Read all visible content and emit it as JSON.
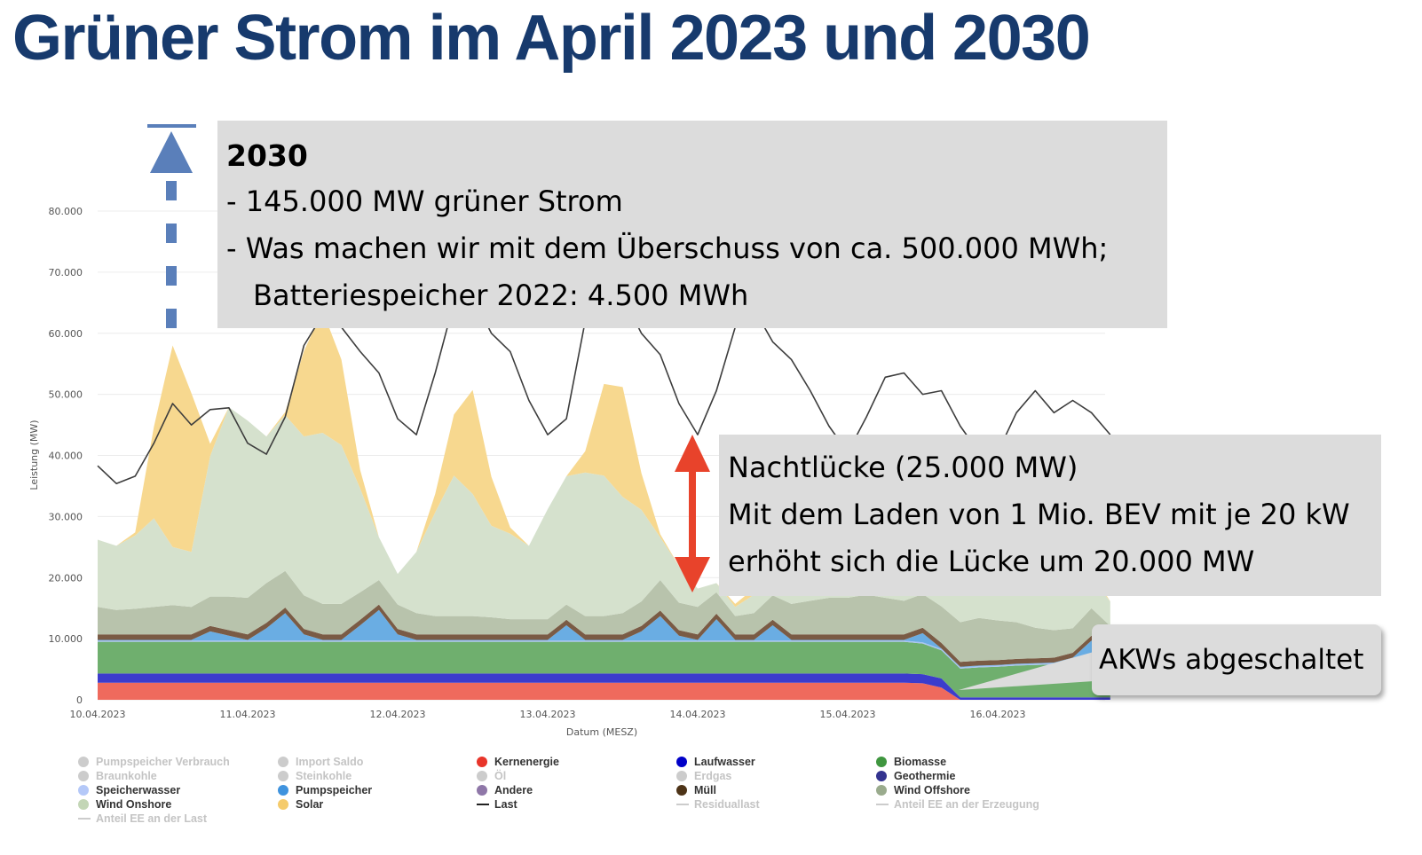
{
  "title": "Grüner Strom im April 2023 und 2030",
  "annotations": {
    "box_2030": {
      "heading": "2030",
      "line1": "- 145.000 MW grüner Strom",
      "line2": "-  Was machen wir mit dem Überschuss von ca. 500.000 MWh;",
      "line3": "Batteriespeicher 2022: 4.500 MWh"
    },
    "box_gap": {
      "line1": "Nachtlücke (25.000 MW)",
      "line2": "Mit dem Laden von 1 Mio. BEV mit je 20 kW",
      "line3": "erhöht sich die Lücke um 20.000 MW"
    },
    "box_akw": "AKWs abgeschaltet",
    "colors": {
      "arrow_up": "#5a7fba",
      "arrow_gap": "#e8432b",
      "box": "#dcdcdc"
    }
  },
  "chart_data": {
    "type": "area",
    "stacked": true,
    "xlabel": "Datum (MESZ)",
    "ylabel": "Leistung (MW)",
    "ylim": [
      0,
      80000
    ],
    "grid": true,
    "legend_placement": "bottom",
    "y_ticks": [
      "0",
      "10.000",
      "20.000",
      "30.000",
      "40.000",
      "50.000",
      "60.000",
      "70.000",
      "80.000"
    ],
    "x_ticks": [
      "10.04.2023",
      "11.04.2023",
      "12.04.2023",
      "13.04.2023",
      "14.04.2023",
      "15.04.2023",
      "16.04.2023"
    ],
    "x": [
      "2023-04-10 00:00",
      "2023-04-10 03:00",
      "2023-04-10 06:00",
      "2023-04-10 09:00",
      "2023-04-10 12:00",
      "2023-04-10 15:00",
      "2023-04-10 18:00",
      "2023-04-10 21:00",
      "2023-04-11 00:00",
      "2023-04-11 03:00",
      "2023-04-11 06:00",
      "2023-04-11 09:00",
      "2023-04-11 12:00",
      "2023-04-11 15:00",
      "2023-04-11 18:00",
      "2023-04-11 21:00",
      "2023-04-12 00:00",
      "2023-04-12 03:00",
      "2023-04-12 06:00",
      "2023-04-12 09:00",
      "2023-04-12 12:00",
      "2023-04-12 15:00",
      "2023-04-12 18:00",
      "2023-04-12 21:00",
      "2023-04-13 00:00",
      "2023-04-13 03:00",
      "2023-04-13 06:00",
      "2023-04-13 09:00",
      "2023-04-13 12:00",
      "2023-04-13 15:00",
      "2023-04-13 18:00",
      "2023-04-13 21:00",
      "2023-04-14 00:00",
      "2023-04-14 03:00",
      "2023-04-14 06:00",
      "2023-04-14 09:00",
      "2023-04-14 12:00",
      "2023-04-14 15:00",
      "2023-04-14 18:00",
      "2023-04-14 21:00",
      "2023-04-15 00:00",
      "2023-04-15 03:00",
      "2023-04-15 06:00",
      "2023-04-15 09:00",
      "2023-04-15 12:00",
      "2023-04-15 15:00",
      "2023-04-15 18:00",
      "2023-04-15 21:00",
      "2023-04-16 00:00",
      "2023-04-16 03:00",
      "2023-04-16 06:00",
      "2023-04-16 09:00",
      "2023-04-16 12:00",
      "2023-04-16 15:00",
      "2023-04-16 18:00"
    ],
    "series": [
      {
        "name": "Kernenergie",
        "color": "#ef6a5d",
        "values": [
          2800,
          2800,
          2800,
          2800,
          2800,
          2800,
          2800,
          2800,
          2800,
          2800,
          2800,
          2800,
          2800,
          2800,
          2800,
          2800,
          2800,
          2800,
          2800,
          2800,
          2800,
          2800,
          2800,
          2800,
          2800,
          2800,
          2800,
          2800,
          2800,
          2800,
          2800,
          2800,
          2800,
          2800,
          2800,
          2800,
          2800,
          2800,
          2800,
          2800,
          2800,
          2800,
          2800,
          2800,
          2700,
          2000,
          0,
          0,
          0,
          0,
          0,
          0,
          0,
          0,
          0
        ]
      },
      {
        "name": "Laufwasser",
        "color": "#3c3ccc",
        "values": [
          1500,
          1500,
          1500,
          1500,
          1500,
          1500,
          1500,
          1500,
          1500,
          1500,
          1500,
          1500,
          1500,
          1500,
          1500,
          1500,
          1500,
          1500,
          1500,
          1500,
          1500,
          1500,
          1500,
          1500,
          1500,
          1500,
          1500,
          1500,
          1500,
          1500,
          1500,
          1500,
          1500,
          1500,
          1500,
          1500,
          1500,
          1500,
          1500,
          1500,
          1500,
          1500,
          1500,
          1500,
          1500,
          1500,
          400,
          400,
          400,
          400,
          400,
          400,
          400,
          400,
          400
        ]
      },
      {
        "name": "Biomasse",
        "color": "#6faf6e",
        "values": [
          5200,
          5200,
          5200,
          5200,
          5200,
          5200,
          5200,
          5200,
          5200,
          5200,
          5200,
          5200,
          5200,
          5200,
          5200,
          5200,
          5200,
          5200,
          5200,
          5200,
          5200,
          5200,
          5200,
          5200,
          5200,
          5200,
          5200,
          5200,
          5200,
          5200,
          5200,
          5200,
          5200,
          5200,
          5200,
          5200,
          5200,
          5200,
          5200,
          5200,
          5200,
          5200,
          5200,
          5200,
          5000,
          4600,
          4700,
          4900,
          5000,
          5200,
          5300,
          5400,
          5500,
          5600,
          5700
        ]
      },
      {
        "name": "Speicherwasser",
        "color": "#a9c3f2",
        "values": [
          200,
          200,
          200,
          200,
          200,
          200,
          200,
          200,
          200,
          200,
          200,
          200,
          200,
          200,
          200,
          200,
          200,
          200,
          200,
          200,
          200,
          200,
          200,
          200,
          200,
          200,
          200,
          200,
          200,
          200,
          200,
          200,
          200,
          200,
          200,
          200,
          200,
          200,
          200,
          200,
          200,
          200,
          200,
          200,
          200,
          200,
          200,
          200,
          200,
          200,
          200,
          200,
          200,
          200,
          200
        ]
      },
      {
        "name": "Pumpspeicher",
        "color": "#6aade3",
        "values": [
          100,
          100,
          100,
          100,
          100,
          100,
          1500,
          800,
          100,
          2000,
          4500,
          1000,
          100,
          100,
          2500,
          5000,
          1000,
          100,
          100,
          100,
          100,
          100,
          100,
          100,
          100,
          2500,
          100,
          100,
          100,
          1500,
          4000,
          800,
          100,
          3500,
          100,
          100,
          2500,
          100,
          100,
          100,
          100,
          100,
          100,
          100,
          1500,
          100,
          100,
          100,
          100,
          100,
          100,
          100,
          800,
          3500,
          1500
        ]
      },
      {
        "name": "Müll",
        "color": "#7a5b45",
        "values": [
          900,
          900,
          900,
          900,
          900,
          900,
          900,
          900,
          900,
          900,
          900,
          900,
          900,
          900,
          900,
          900,
          900,
          900,
          900,
          900,
          900,
          900,
          900,
          900,
          900,
          900,
          900,
          900,
          900,
          900,
          900,
          900,
          900,
          900,
          900,
          900,
          900,
          900,
          900,
          900,
          900,
          900,
          900,
          900,
          900,
          900,
          800,
          800,
          800,
          800,
          800,
          800,
          800,
          800,
          800
        ]
      },
      {
        "name": "Wind Offshore",
        "color": "#b8c3ac",
        "values": [
          4500,
          4000,
          4200,
          4500,
          4800,
          4500,
          4800,
          5500,
          6000,
          6500,
          6000,
          5500,
          5000,
          5000,
          4500,
          4000,
          4000,
          3500,
          3000,
          3000,
          3000,
          2800,
          2500,
          2500,
          2500,
          2500,
          3000,
          3000,
          3500,
          4000,
          5000,
          4500,
          4500,
          3500,
          3000,
          3500,
          4000,
          5000,
          5500,
          6000,
          6000,
          6500,
          6000,
          5500,
          5500,
          6000,
          6500,
          7000,
          6500,
          6000,
          5000,
          4500,
          4000,
          4500,
          3500
        ]
      },
      {
        "name": "Wind Onshore",
        "color": "#d5e1cd",
        "values": [
          11000,
          10500,
          12000,
          14500,
          9500,
          9000,
          23000,
          31000,
          29000,
          24000,
          25500,
          26000,
          28000,
          26000,
          17000,
          7000,
          5000,
          10000,
          17000,
          23000,
          20000,
          15000,
          14000,
          12000,
          18000,
          21000,
          23500,
          23000,
          19000,
          15000,
          7000,
          6000,
          3000,
          1500,
          1500,
          3000,
          4000,
          3000,
          4000,
          5000,
          5000,
          6000,
          7000,
          6000,
          5000,
          5000,
          6000,
          6000,
          6000,
          7000,
          7000,
          8000,
          6000,
          5000,
          4000
        ]
      },
      {
        "name": "Solar",
        "color": "#f7d88f",
        "values": [
          0,
          0,
          500,
          15000,
          33000,
          26000,
          2000,
          0,
          0,
          0,
          500,
          14000,
          20000,
          14000,
          3000,
          0,
          0,
          0,
          3000,
          10000,
          17000,
          8000,
          1000,
          0,
          0,
          0,
          3500,
          15000,
          18000,
          6000,
          500,
          0,
          0,
          0,
          500,
          1000,
          1000,
          500,
          0,
          0,
          0,
          0,
          500,
          1000,
          1000,
          0,
          0,
          0,
          0,
          0,
          1000,
          2500,
          3000,
          1000,
          0
        ]
      }
    ],
    "line": {
      "name": "Last",
      "color": "#3d3d3d",
      "values": [
        38300,
        35400,
        36600,
        42000,
        48500,
        45000,
        47500,
        47800,
        42000,
        40200,
        46300,
        58000,
        63000,
        61000,
        57000,
        53500,
        46000,
        43400,
        53500,
        65000,
        66000,
        60000,
        57000,
        49000,
        43400,
        46000,
        62000,
        66000,
        66000,
        60000,
        56500,
        48500,
        43400,
        50600,
        61000,
        64000,
        58600,
        55700,
        50600,
        44800,
        40500,
        46300,
        52800,
        53500,
        50000,
        50600,
        44800,
        40500,
        40500,
        47000,
        50600,
        47000,
        49000,
        47000,
        43400
      ]
    }
  },
  "legend": [
    {
      "label": "Pumpspeicher Verbrauch",
      "color": "#cccccc",
      "kind": "dot",
      "active": false
    },
    {
      "label": "Import Saldo",
      "color": "#cccccc",
      "kind": "dot",
      "active": false
    },
    {
      "label": "Kernenergie",
      "color": "#e8352a",
      "kind": "dot",
      "active": true
    },
    {
      "label": "Laufwasser",
      "color": "#0000c8",
      "kind": "dot",
      "active": true
    },
    {
      "label": "Biomasse",
      "color": "#3f963f",
      "kind": "dot",
      "active": true
    },
    {
      "label": "Braunkohle",
      "color": "#cccccc",
      "kind": "dot",
      "active": false
    },
    {
      "label": "Steinkohle",
      "color": "#cccccc",
      "kind": "dot",
      "active": false
    },
    {
      "label": "Öl",
      "color": "#cccccc",
      "kind": "dot",
      "active": false
    },
    {
      "label": "Erdgas",
      "color": "#cccccc",
      "kind": "dot",
      "active": false
    },
    {
      "label": "Geothermie",
      "color": "#33338f",
      "kind": "dot",
      "active": true
    },
    {
      "label": "Speicherwasser",
      "color": "#b4c8f8",
      "kind": "dot",
      "active": true
    },
    {
      "label": "Pumpspeicher",
      "color": "#3f93de",
      "kind": "dot",
      "active": true
    },
    {
      "label": "Andere",
      "color": "#8f77a8",
      "kind": "dot",
      "active": true
    },
    {
      "label": "Müll",
      "color": "#4d3317",
      "kind": "dot",
      "active": true
    },
    {
      "label": "Wind Offshore",
      "color": "#9aab8d",
      "kind": "dot",
      "active": true
    },
    {
      "label": "Wind Onshore",
      "color": "#c3d6b6",
      "kind": "dot",
      "active": true
    },
    {
      "label": "Solar",
      "color": "#f5cb6b",
      "kind": "dot",
      "active": true
    },
    {
      "label": "Last",
      "color": "#222222",
      "kind": "line",
      "active": true
    },
    {
      "label": "Residuallast",
      "color": "#cccccc",
      "kind": "line",
      "active": false
    },
    {
      "label": "Anteil EE an der Erzeugung",
      "color": "#cccccc",
      "kind": "line",
      "active": false
    },
    {
      "label": "Anteil EE an der Last",
      "color": "#cccccc",
      "kind": "line",
      "active": false
    }
  ]
}
